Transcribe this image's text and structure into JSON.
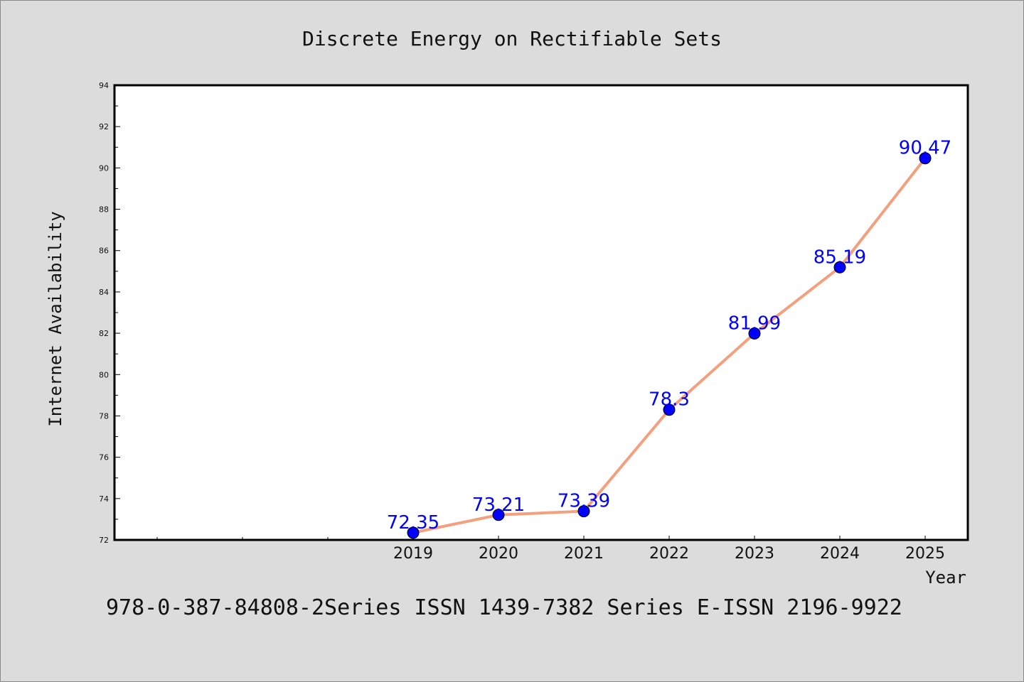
{
  "chart_data": {
    "type": "line",
    "title": "Discrete Energy on Rectifiable Sets",
    "xlabel": "Year",
    "ylabel": "Internet Availability",
    "categories": [
      "2019",
      "2020",
      "2021",
      "2022",
      "2023",
      "2024",
      "2025"
    ],
    "series": [
      {
        "values": [
          72.35,
          73.21,
          73.39,
          78.3,
          81.99,
          85.19,
          90.47
        ],
        "labels": [
          "72.35",
          "73.21",
          "73.39",
          "78.3",
          "81.99",
          "85.19",
          "90.47"
        ],
        "line_color": "#f4a07e",
        "marker_color": "#0000ff"
      }
    ],
    "ylim": [
      72,
      94
    ],
    "yticks": [
      "72",
      "74",
      "76",
      "78",
      "80",
      "82",
      "84",
      "86",
      "88",
      "90",
      "92",
      "94"
    ],
    "grid": false,
    "legend": "none"
  },
  "footer_text": "978-0-387-84808-2Series ISSN 1439-7382 Series E-ISSN 2196-9922",
  "colors": {
    "background": "#dcdcdc",
    "plot_background": "#ffffff",
    "line": "#f4a07e",
    "marker": "#0000ff",
    "data_label": "#0000ff"
  }
}
